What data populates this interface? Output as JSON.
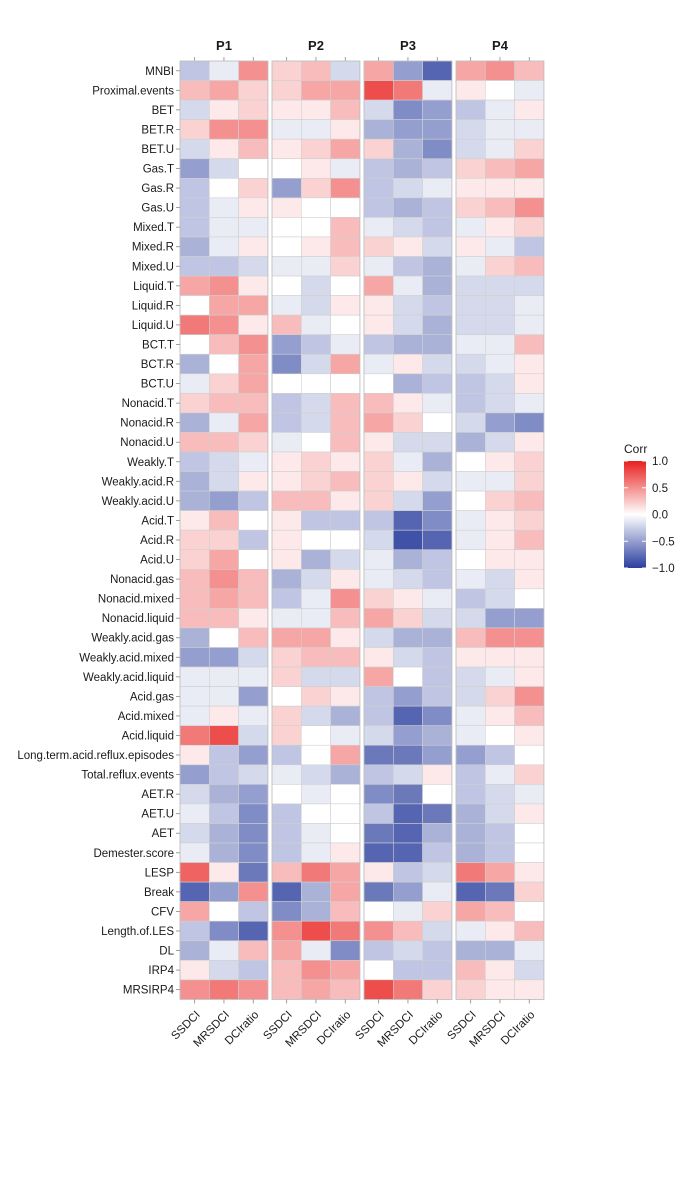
{
  "chart_data": {
    "type": "heatmap",
    "panels": [
      "P1",
      "P2",
      "P3",
      "P4"
    ],
    "columns": [
      "SSDCI",
      "MRSDCI",
      "DCIratio"
    ],
    "rows": [
      "MNBI",
      "Proximal.events",
      "BET",
      "BET.R",
      "BET.U",
      "Gas.T",
      "Gas.R",
      "Gas.U",
      "Mixed.T",
      "Mixed.R",
      "Mixed.U",
      "Liquid.T",
      "Liquid.R",
      "Liquid.U",
      "BCT.T",
      "BCT.R",
      "BCT.U",
      "Nonacid.T",
      "Nonacid.R",
      "Nonacid.U",
      "Weakly.T",
      "Weakly.acid.R",
      "Weakly.acid.U",
      "Acid.T",
      "Acid.R",
      "Acid.U",
      "Nonacid.gas",
      "Nonacid.mixed",
      "Nonacid.liquid",
      "Weakly.acid.gas",
      "Weakly.acid.mixed",
      "Weakly.acid.liquid",
      "Acid.gas",
      "Acid.mixed",
      "Acid.liquid",
      "Long.term.acid.reflux.episodes",
      "Total.reflux.events",
      "AET.R",
      "AET.U",
      "AET",
      "Demester.score",
      "LESP",
      "Break",
      "CFV",
      "Length.of.LES",
      "DL",
      "IRP4",
      "MRSIRP4"
    ],
    "values": {
      "P1": [
        [
          -0.3,
          -0.1,
          0.5
        ],
        [
          0.3,
          0.4,
          0.2
        ],
        [
          -0.2,
          0.1,
          0.2
        ],
        [
          0.2,
          0.5,
          0.5
        ],
        [
          -0.2,
          0.1,
          0.3
        ],
        [
          -0.5,
          -0.2,
          0.0
        ],
        [
          -0.3,
          0.0,
          0.2
        ],
        [
          -0.3,
          -0.1,
          0.1
        ],
        [
          -0.3,
          -0.1,
          -0.1
        ],
        [
          -0.4,
          -0.1,
          0.1
        ],
        [
          -0.3,
          -0.3,
          -0.2
        ],
        [
          0.4,
          0.5,
          0.1
        ],
        [
          0.0,
          0.4,
          0.4
        ],
        [
          0.6,
          0.5,
          0.1
        ],
        [
          0.0,
          0.3,
          0.5
        ],
        [
          -0.4,
          0.0,
          0.4
        ],
        [
          -0.1,
          0.2,
          0.4
        ],
        [
          0.2,
          0.3,
          0.3
        ],
        [
          -0.4,
          -0.1,
          0.4
        ],
        [
          0.3,
          0.3,
          0.2
        ],
        [
          -0.3,
          -0.2,
          -0.1
        ],
        [
          -0.4,
          -0.2,
          0.1
        ],
        [
          -0.4,
          -0.5,
          -0.3
        ],
        [
          0.1,
          0.3,
          0.0
        ],
        [
          0.2,
          0.2,
          -0.3
        ],
        [
          0.2,
          0.4,
          0.0
        ],
        [
          0.3,
          0.5,
          0.3
        ],
        [
          0.3,
          0.4,
          0.3
        ],
        [
          0.3,
          0.3,
          0.1
        ],
        [
          -0.4,
          0.0,
          0.3
        ],
        [
          -0.5,
          -0.5,
          -0.2
        ],
        [
          -0.1,
          -0.1,
          -0.1
        ],
        [
          -0.1,
          -0.1,
          -0.5
        ],
        [
          -0.1,
          0.1,
          -0.1
        ],
        [
          0.6,
          0.8,
          -0.2
        ],
        [
          0.1,
          -0.3,
          -0.5
        ],
        [
          -0.5,
          -0.3,
          -0.2
        ],
        [
          -0.2,
          -0.4,
          -0.5
        ],
        [
          -0.1,
          -0.3,
          -0.6
        ],
        [
          -0.2,
          -0.4,
          -0.6
        ],
        [
          -0.1,
          -0.4,
          -0.6
        ],
        [
          0.7,
          0.1,
          -0.7
        ],
        [
          -0.8,
          -0.5,
          0.5
        ],
        [
          0.4,
          0.0,
          -0.3
        ],
        [
          -0.3,
          -0.6,
          -0.8
        ],
        [
          -0.4,
          -0.1,
          0.3
        ],
        [
          0.1,
          -0.2,
          -0.3
        ],
        [
          0.5,
          0.6,
          0.5
        ]
      ],
      "P2": [
        [
          0.2,
          0.3,
          -0.2
        ],
        [
          0.2,
          0.4,
          0.4
        ],
        [
          0.1,
          0.1,
          0.3
        ],
        [
          -0.1,
          -0.1,
          0.1
        ],
        [
          0.1,
          0.2,
          0.4
        ],
        [
          0.0,
          0.1,
          -0.1
        ],
        [
          -0.5,
          0.2,
          0.5
        ],
        [
          0.1,
          0.0,
          0.0
        ],
        [
          0.0,
          0.0,
          0.3
        ],
        [
          0.0,
          0.1,
          0.3
        ],
        [
          -0.1,
          -0.1,
          0.2
        ],
        [
          0.0,
          -0.2,
          0.0
        ],
        [
          -0.1,
          -0.2,
          0.1
        ],
        [
          0.3,
          -0.1,
          0.0
        ],
        [
          -0.5,
          -0.3,
          -0.1
        ],
        [
          -0.6,
          -0.2,
          0.4
        ],
        [
          0.0,
          0.0,
          0.0
        ],
        [
          -0.3,
          -0.2,
          0.3
        ],
        [
          -0.3,
          -0.2,
          0.3
        ],
        [
          -0.1,
          0.0,
          0.3
        ],
        [
          0.1,
          0.2,
          0.1
        ],
        [
          0.1,
          0.2,
          0.3
        ],
        [
          0.3,
          0.3,
          0.1
        ],
        [
          0.1,
          -0.3,
          -0.3
        ],
        [
          0.1,
          0.0,
          0.0
        ],
        [
          0.1,
          -0.4,
          -0.2
        ],
        [
          -0.4,
          -0.2,
          0.1
        ],
        [
          -0.3,
          -0.1,
          0.5
        ],
        [
          -0.1,
          -0.1,
          0.3
        ],
        [
          0.4,
          0.4,
          0.1
        ],
        [
          0.2,
          0.3,
          0.3
        ],
        [
          0.2,
          -0.2,
          -0.2
        ],
        [
          0.0,
          0.2,
          0.1
        ],
        [
          0.2,
          -0.2,
          -0.4
        ],
        [
          0.2,
          0.0,
          -0.1
        ],
        [
          -0.3,
          0.0,
          0.4
        ],
        [
          -0.1,
          -0.2,
          -0.4
        ],
        [
          0.0,
          -0.1,
          0.0
        ],
        [
          -0.3,
          0.0,
          0.0
        ],
        [
          -0.3,
          -0.1,
          0.0
        ],
        [
          -0.3,
          -0.1,
          0.1
        ],
        [
          0.3,
          0.6,
          0.4
        ],
        [
          -0.8,
          -0.4,
          0.4
        ],
        [
          -0.6,
          -0.4,
          0.3
        ],
        [
          0.5,
          0.8,
          0.6
        ],
        [
          0.4,
          -0.1,
          -0.6
        ],
        [
          0.3,
          0.5,
          0.4
        ],
        [
          0.3,
          0.4,
          0.3
        ]
      ],
      "P3": [
        [
          0.4,
          -0.5,
          -0.8
        ],
        [
          0.8,
          0.6,
          -0.1
        ],
        [
          -0.2,
          -0.6,
          -0.5
        ],
        [
          -0.4,
          -0.5,
          -0.5
        ],
        [
          0.2,
          -0.4,
          -0.6
        ],
        [
          -0.3,
          -0.4,
          -0.3
        ],
        [
          -0.3,
          -0.2,
          -0.1
        ],
        [
          -0.3,
          -0.4,
          -0.3
        ],
        [
          -0.1,
          -0.2,
          -0.3
        ],
        [
          0.2,
          0.1,
          -0.2
        ],
        [
          -0.1,
          -0.3,
          -0.4
        ],
        [
          0.4,
          -0.1,
          -0.4
        ],
        [
          0.1,
          -0.2,
          -0.3
        ],
        [
          0.1,
          -0.2,
          -0.4
        ],
        [
          -0.3,
          -0.4,
          -0.4
        ],
        [
          -0.1,
          0.1,
          -0.2
        ],
        [
          0.0,
          -0.4,
          -0.3
        ],
        [
          0.3,
          0.1,
          -0.1
        ],
        [
          0.4,
          0.2,
          0.0
        ],
        [
          0.1,
          -0.2,
          -0.2
        ],
        [
          0.2,
          -0.1,
          -0.4
        ],
        [
          0.2,
          0.1,
          -0.2
        ],
        [
          0.2,
          -0.2,
          -0.5
        ],
        [
          -0.3,
          -0.8,
          -0.6
        ],
        [
          -0.2,
          -0.9,
          -0.8
        ],
        [
          -0.1,
          -0.4,
          -0.3
        ],
        [
          -0.1,
          -0.2,
          -0.3
        ],
        [
          0.2,
          0.1,
          -0.1
        ],
        [
          0.4,
          0.2,
          -0.2
        ],
        [
          -0.2,
          -0.4,
          -0.4
        ],
        [
          0.1,
          -0.2,
          -0.3
        ],
        [
          0.4,
          0.0,
          -0.3
        ],
        [
          -0.3,
          -0.5,
          -0.3
        ],
        [
          -0.3,
          -0.8,
          -0.6
        ],
        [
          -0.2,
          -0.5,
          -0.4
        ],
        [
          -0.7,
          -0.7,
          -0.5
        ],
        [
          -0.3,
          -0.2,
          0.1
        ],
        [
          -0.6,
          -0.7,
          0.0
        ],
        [
          -0.3,
          -0.8,
          -0.7
        ],
        [
          -0.7,
          -0.8,
          -0.4
        ],
        [
          -0.8,
          -0.8,
          -0.3
        ],
        [
          0.1,
          -0.3,
          -0.2
        ],
        [
          -0.7,
          -0.5,
          -0.1
        ],
        [
          0.0,
          -0.1,
          0.2
        ],
        [
          0.5,
          0.3,
          -0.2
        ],
        [
          -0.3,
          -0.2,
          -0.3
        ],
        [
          0.0,
          -0.3,
          -0.3
        ],
        [
          0.8,
          0.6,
          0.2
        ]
      ],
      "P4": [
        [
          0.4,
          0.5,
          0.3
        ],
        [
          0.1,
          0.0,
          -0.1
        ],
        [
          -0.3,
          -0.1,
          0.1
        ],
        [
          -0.2,
          -0.1,
          -0.1
        ],
        [
          -0.2,
          -0.1,
          0.2
        ],
        [
          0.2,
          0.3,
          0.4
        ],
        [
          0.1,
          0.1,
          0.1
        ],
        [
          0.2,
          0.3,
          0.5
        ],
        [
          -0.1,
          0.1,
          0.2
        ],
        [
          0.1,
          -0.1,
          -0.3
        ],
        [
          -0.1,
          0.2,
          0.3
        ],
        [
          -0.2,
          -0.2,
          -0.2
        ],
        [
          -0.2,
          -0.2,
          -0.1
        ],
        [
          -0.2,
          -0.2,
          -0.1
        ],
        [
          -0.1,
          -0.1,
          0.3
        ],
        [
          -0.2,
          -0.1,
          0.1
        ],
        [
          -0.3,
          -0.2,
          0.1
        ],
        [
          -0.3,
          -0.2,
          -0.1
        ],
        [
          -0.2,
          -0.5,
          -0.6
        ],
        [
          -0.4,
          -0.2,
          0.1
        ],
        [
          0.0,
          0.1,
          0.2
        ],
        [
          -0.1,
          -0.1,
          0.2
        ],
        [
          0.0,
          0.2,
          0.3
        ],
        [
          -0.1,
          0.1,
          0.2
        ],
        [
          -0.1,
          0.1,
          0.3
        ],
        [
          0.0,
          0.1,
          0.1
        ],
        [
          -0.1,
          -0.2,
          0.1
        ],
        [
          -0.3,
          -0.2,
          0.0
        ],
        [
          -0.2,
          -0.5,
          -0.5
        ],
        [
          0.3,
          0.5,
          0.5
        ],
        [
          0.1,
          0.1,
          0.1
        ],
        [
          -0.2,
          -0.1,
          0.1
        ],
        [
          -0.2,
          0.2,
          0.5
        ],
        [
          -0.1,
          0.1,
          0.3
        ],
        [
          -0.1,
          0.0,
          0.1
        ],
        [
          -0.5,
          -0.3,
          0.0
        ],
        [
          -0.3,
          -0.1,
          0.2
        ],
        [
          -0.3,
          -0.2,
          -0.1
        ],
        [
          -0.4,
          -0.2,
          0.1
        ],
        [
          -0.4,
          -0.3,
          0.0
        ],
        [
          -0.4,
          -0.3,
          0.0
        ],
        [
          0.6,
          0.4,
          0.1
        ],
        [
          -0.8,
          -0.7,
          0.2
        ],
        [
          0.4,
          0.3,
          0.0
        ],
        [
          -0.1,
          0.1,
          0.3
        ],
        [
          -0.4,
          -0.4,
          -0.1
        ],
        [
          0.3,
          0.1,
          -0.2
        ],
        [
          0.2,
          0.1,
          0.1
        ]
      ]
    },
    "legend": {
      "title": "Corr",
      "ticks": [
        "1.0",
        "0.5",
        "0.0",
        "−0.5",
        "−1.0"
      ],
      "tick_values": [
        1.0,
        0.5,
        0.0,
        -0.5,
        -1.0
      ],
      "range": [
        -1,
        1
      ]
    },
    "colors": {
      "low": "#2b3f9e",
      "mid": "#ffffff",
      "high": "#e8201e"
    }
  }
}
